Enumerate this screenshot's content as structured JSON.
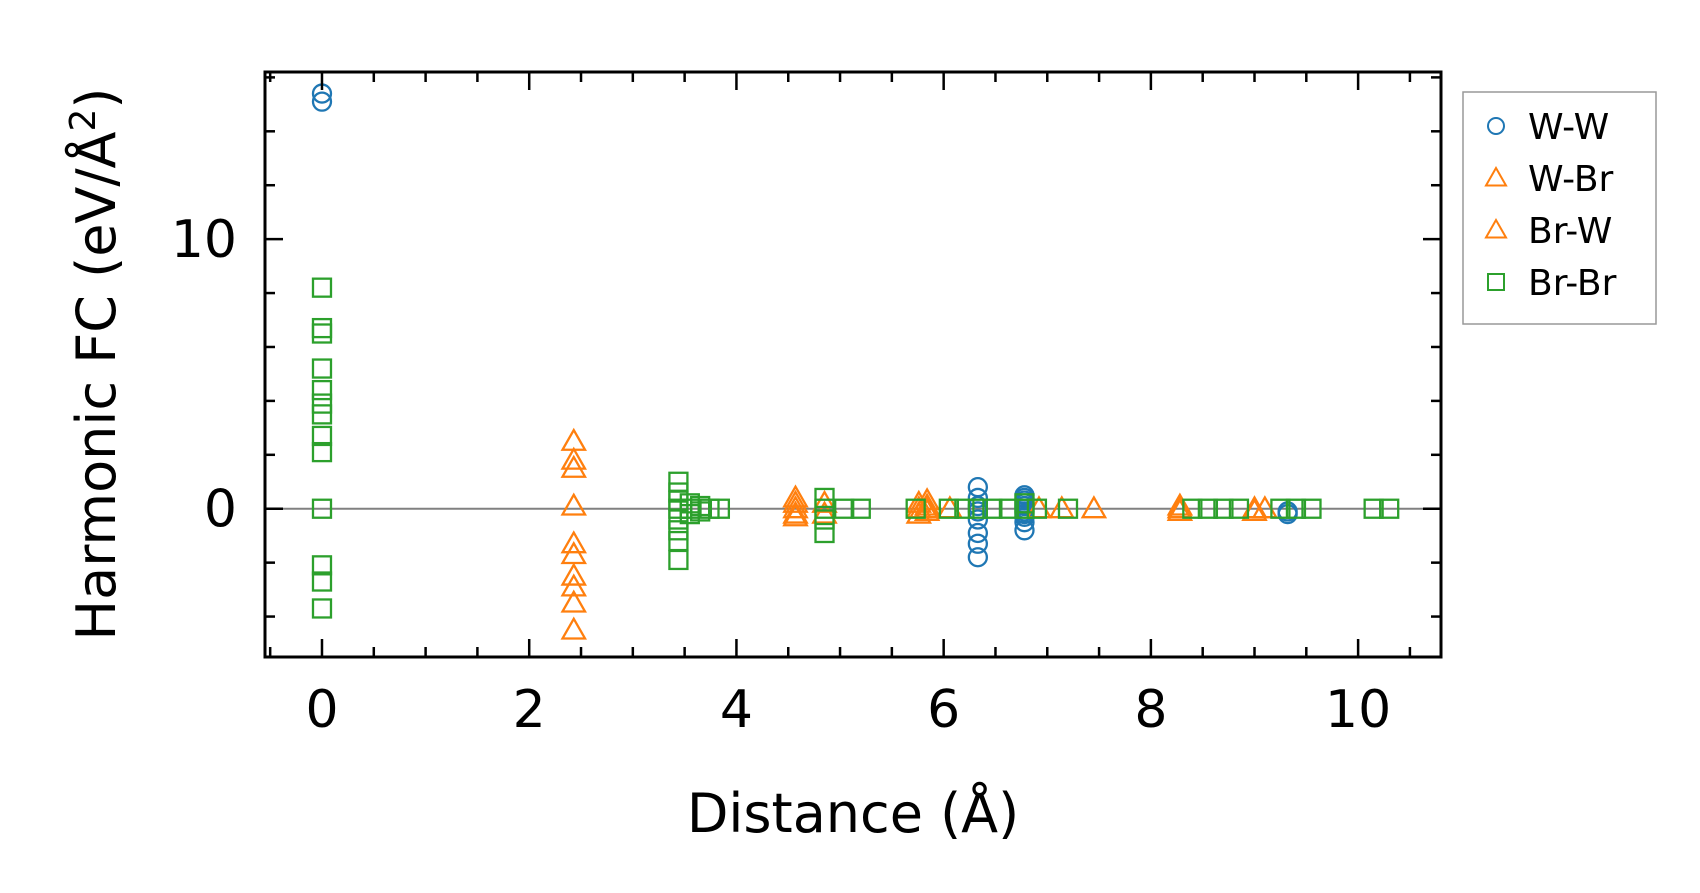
{
  "chart_data": {
    "type": "scatter",
    "xlabel": "Distance (Å)",
    "ylabel_main": "Harmonic FC (eV/Å",
    "ylabel_sup": "2",
    "ylabel_end": ")",
    "xlim": [
      -0.55,
      10.8
    ],
    "ylim": [
      -5.5,
      16.2
    ],
    "xticks": [
      0,
      2,
      4,
      6,
      8,
      10
    ],
    "xtick_labels": [
      "0",
      "2",
      "4",
      "6",
      "8",
      "10"
    ],
    "yticks": [
      0,
      10
    ],
    "ytick_labels": [
      "0",
      "10"
    ],
    "x_minor_step": 0.5,
    "y_minor_step": 2,
    "zero_line": true,
    "grid": false,
    "legend_position": "outside-right-top",
    "series": [
      {
        "name": "W-W",
        "marker": "circle",
        "color": "#1f77b4",
        "points": [
          [
            0,
            15.4
          ],
          [
            0,
            15.1
          ],
          [
            6.33,
            0.8
          ],
          [
            6.33,
            0.4
          ],
          [
            6.33,
            0.1
          ],
          [
            6.33,
            -0.1
          ],
          [
            6.33,
            -0.4
          ],
          [
            6.33,
            -0.9
          ],
          [
            6.33,
            -1.3
          ],
          [
            6.33,
            -1.8
          ],
          [
            6.78,
            0.5
          ],
          [
            6.78,
            0.4
          ],
          [
            6.78,
            0.3
          ],
          [
            6.78,
            0.2
          ],
          [
            6.78,
            0.1
          ],
          [
            6.78,
            0.0
          ],
          [
            6.78,
            -0.1
          ],
          [
            6.78,
            -0.2
          ],
          [
            6.78,
            -0.3
          ],
          [
            6.78,
            -0.5
          ],
          [
            6.78,
            -0.8
          ],
          [
            9.32,
            -0.1
          ],
          [
            9.32,
            -0.2
          ]
        ]
      },
      {
        "name": "W-Br",
        "marker": "triangle",
        "color": "#ff7f0e",
        "points": [
          [
            2.43,
            2.5
          ],
          [
            2.43,
            1.8
          ],
          [
            2.43,
            1.5
          ],
          [
            2.43,
            0.1
          ],
          [
            2.43,
            -1.3
          ],
          [
            2.43,
            -1.7
          ],
          [
            2.43,
            -2.5
          ],
          [
            2.43,
            -2.9
          ],
          [
            2.43,
            -3.5
          ],
          [
            2.43,
            -4.5
          ],
          [
            4.57,
            0.4
          ],
          [
            4.57,
            0.2
          ],
          [
            4.57,
            0.0
          ],
          [
            4.57,
            -0.2
          ],
          [
            4.57,
            -0.3
          ],
          [
            5.76,
            0.2
          ],
          [
            5.76,
            0.0
          ],
          [
            5.76,
            -0.2
          ],
          [
            5.84,
            0.1
          ],
          [
            5.84,
            -0.1
          ],
          [
            7.45,
            0.0
          ],
          [
            8.28,
            0.0
          ],
          [
            8.28,
            -0.1
          ],
          [
            9.0,
            0.0
          ],
          [
            9.0,
            -0.1
          ]
        ]
      },
      {
        "name": "Br-W",
        "marker": "triangle",
        "color": "#ff7f0e",
        "points": [
          [
            4.85,
            0.2
          ],
          [
            4.85,
            -0.2
          ],
          [
            5.84,
            0.3
          ],
          [
            5.84,
            0.0
          ],
          [
            6.06,
            0.0
          ],
          [
            6.92,
            0.0
          ],
          [
            7.14,
            0.0
          ],
          [
            8.28,
            0.1
          ],
          [
            9.1,
            0.0
          ]
        ]
      },
      {
        "name": "Br-Br",
        "marker": "square",
        "color": "#2ca02c",
        "points": [
          [
            0,
            8.2
          ],
          [
            0,
            6.7
          ],
          [
            0,
            6.5
          ],
          [
            0,
            5.2
          ],
          [
            0,
            4.4
          ],
          [
            0,
            3.9
          ],
          [
            0,
            3.5
          ],
          [
            0,
            2.7
          ],
          [
            0,
            2.1
          ],
          [
            0,
            0.0
          ],
          [
            0,
            -2.1
          ],
          [
            0,
            -2.7
          ],
          [
            0,
            -3.7
          ],
          [
            3.44,
            1.0
          ],
          [
            3.44,
            0.6
          ],
          [
            3.44,
            0.3
          ],
          [
            3.44,
            0.0
          ],
          [
            3.44,
            -0.4
          ],
          [
            3.44,
            -0.8
          ],
          [
            3.44,
            -1.2
          ],
          [
            3.44,
            -1.9
          ],
          [
            3.55,
            0.2
          ],
          [
            3.55,
            0.0
          ],
          [
            3.55,
            -0.2
          ],
          [
            3.65,
            0.1
          ],
          [
            3.65,
            -0.1
          ],
          [
            3.74,
            0.0
          ],
          [
            3.84,
            0.0
          ],
          [
            4.85,
            0.4
          ],
          [
            4.85,
            0.0
          ],
          [
            4.85,
            -0.4
          ],
          [
            4.85,
            -0.9
          ],
          [
            5.04,
            0.0
          ],
          [
            5.2,
            0.0
          ],
          [
            5.73,
            0.0
          ],
          [
            6.05,
            0.0
          ],
          [
            6.2,
            0.0
          ],
          [
            6.33,
            0.0
          ],
          [
            6.47,
            0.0
          ],
          [
            6.63,
            0.0
          ],
          [
            6.78,
            0.0
          ],
          [
            6.78,
            0.2
          ],
          [
            6.9,
            0.0
          ],
          [
            7.2,
            0.0
          ],
          [
            8.4,
            0.0
          ],
          [
            8.55,
            0.0
          ],
          [
            8.7,
            0.0
          ],
          [
            8.85,
            0.0
          ],
          [
            9.25,
            0.0
          ],
          [
            9.4,
            0.0
          ],
          [
            9.55,
            0.0
          ],
          [
            10.15,
            0.0
          ],
          [
            10.3,
            0.0
          ]
        ]
      }
    ]
  }
}
